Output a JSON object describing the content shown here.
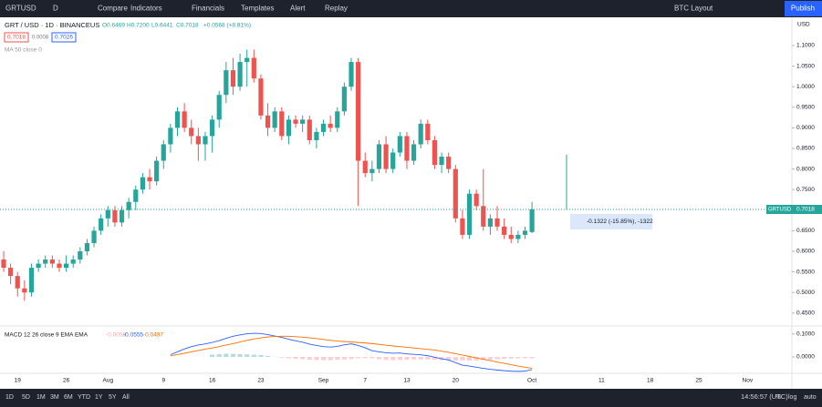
{
  "toolbar": {
    "symbol": "GRTUSD",
    "interval": "D",
    "items": [
      "Compare",
      "Indicators",
      "Financials",
      "Templates",
      "Alert",
      "Replay"
    ],
    "layout": "BTC Layout",
    "publish": "Publish"
  },
  "legend": {
    "title": "GRT / USD · 1D · BINANCEUS",
    "ohlc": [
      "O0.6469",
      "H0.7200",
      "L0.6441",
      "C0.7018",
      "+0.0568 (+8.81%)"
    ],
    "quotes": [
      "0.7018",
      "0.0008",
      "0.7026"
    ],
    "ma": "MA 50 close 0"
  },
  "chart_data": {
    "type": "candlestick",
    "currency": "USD",
    "last_label": "GRTUSD",
    "measure": "-0.1322 (-15.85%), -1322",
    "up_color": "#26a69a",
    "down_color": "#ef5350",
    "categories": [
      null,
      null,
      "19",
      null,
      null,
      null,
      null,
      null,
      null,
      "26",
      null,
      null,
      null,
      null,
      null,
      "Aug",
      null,
      null,
      null,
      null,
      null,
      null,
      null,
      "9",
      null,
      null,
      null,
      null,
      null,
      null,
      "16",
      null,
      null,
      null,
      null,
      null,
      null,
      "23",
      null,
      null,
      null,
      null,
      null,
      null,
      null,
      null,
      "Sep",
      null,
      null,
      null,
      null,
      null,
      "7",
      null,
      null,
      null,
      null,
      null,
      "13",
      null,
      null,
      null,
      null,
      null,
      null,
      "20",
      null,
      null,
      null,
      null,
      null,
      null,
      null,
      null,
      null,
      null,
      "Oct",
      null,
      null,
      null,
      null,
      null,
      null,
      null,
      null,
      null,
      "11",
      null,
      null,
      null,
      null,
      null,
      null,
      "18",
      null,
      null,
      null,
      null,
      null,
      null,
      "25",
      null,
      null,
      null,
      null,
      null,
      null,
      "Nov"
    ],
    "open": [
      0.58,
      0.56,
      0.54,
      0.51,
      0.5,
      0.56,
      0.57,
      0.58,
      0.57,
      0.56,
      0.57,
      0.58,
      0.6,
      0.62,
      0.65,
      0.68,
      0.7,
      0.67,
      0.7,
      0.72,
      0.75,
      0.78,
      0.77,
      0.82,
      0.86,
      0.9,
      0.94,
      0.9,
      0.88,
      0.86,
      0.88,
      0.92,
      0.98,
      1.04,
      1.0,
      1.06,
      1.07,
      1.02,
      0.93,
      0.9,
      0.94,
      0.88,
      0.92,
      0.91,
      0.92,
      0.87,
      0.89,
      0.91,
      0.9,
      0.94,
      1.0,
      1.06,
      0.82,
      0.79,
      0.8,
      0.86,
      0.8,
      0.84,
      0.88,
      0.82,
      0.86,
      0.91,
      0.87,
      0.81,
      0.83,
      0.8,
      0.68,
      0.64,
      0.74,
      0.71,
      0.66,
      0.68,
      0.66,
      0.64,
      0.63,
      0.64,
      0.6469,
      null,
      null,
      null,
      null,
      null,
      null,
      null,
      null,
      null,
      null,
      null,
      null,
      null,
      null,
      null,
      null,
      null,
      null,
      null,
      null,
      null,
      null,
      null,
      null,
      null,
      null,
      null,
      null,
      null,
      null,
      null
    ],
    "high": [
      0.6,
      0.57,
      0.55,
      0.53,
      0.57,
      0.58,
      0.59,
      0.59,
      0.58,
      0.59,
      0.59,
      0.61,
      0.63,
      0.66,
      0.69,
      0.71,
      0.71,
      0.71,
      0.73,
      0.76,
      0.79,
      0.8,
      0.83,
      0.87,
      0.91,
      0.95,
      0.96,
      0.92,
      0.9,
      0.89,
      0.93,
      0.99,
      1.06,
      1.07,
      1.08,
      1.09,
      1.09,
      1.03,
      0.96,
      0.95,
      0.95,
      0.93,
      0.93,
      0.93,
      0.93,
      0.9,
      0.92,
      0.93,
      0.95,
      1.01,
      1.07,
      1.07,
      0.84,
      0.82,
      0.87,
      0.88,
      0.85,
      0.89,
      0.89,
      0.87,
      0.92,
      0.92,
      0.88,
      0.84,
      0.84,
      0.81,
      0.7,
      0.75,
      0.75,
      0.8,
      0.69,
      0.71,
      0.68,
      0.66,
      0.65,
      0.66,
      0.72,
      null,
      null,
      null,
      null,
      null,
      null,
      null,
      null,
      null,
      null,
      null,
      null,
      null,
      null,
      null,
      null,
      null,
      null,
      null,
      null,
      null,
      null,
      null,
      null,
      null,
      null,
      null,
      null,
      null,
      null,
      null
    ],
    "low": [
      0.55,
      0.52,
      0.49,
      0.48,
      0.49,
      0.55,
      0.56,
      0.56,
      0.55,
      0.55,
      0.56,
      0.57,
      0.59,
      0.61,
      0.64,
      0.66,
      0.66,
      0.66,
      0.68,
      0.7,
      0.74,
      0.75,
      0.76,
      0.8,
      0.84,
      0.88,
      0.89,
      0.86,
      0.82,
      0.82,
      0.84,
      0.9,
      0.96,
      0.98,
      0.99,
      1.0,
      1.01,
      0.92,
      0.88,
      0.89,
      0.87,
      0.86,
      0.9,
      0.89,
      0.86,
      0.85,
      0.88,
      0.89,
      0.89,
      0.93,
      0.99,
      0.71,
      0.78,
      0.77,
      0.79,
      0.79,
      0.79,
      0.83,
      0.8,
      0.81,
      0.85,
      0.86,
      0.8,
      0.79,
      0.79,
      0.67,
      0.63,
      0.63,
      0.7,
      0.65,
      0.64,
      0.65,
      0.63,
      0.62,
      0.62,
      0.63,
      0.6441,
      null,
      null,
      null,
      null,
      null,
      null,
      null,
      null,
      null,
      null,
      null,
      null,
      null,
      null,
      null,
      null,
      null,
      null,
      null,
      null,
      null,
      null,
      null,
      null,
      null,
      null,
      null,
      null,
      null,
      null,
      null
    ],
    "close": [
      0.56,
      0.54,
      0.51,
      0.5,
      0.56,
      0.57,
      0.58,
      0.57,
      0.56,
      0.57,
      0.58,
      0.6,
      0.62,
      0.65,
      0.68,
      0.7,
      0.67,
      0.7,
      0.72,
      0.75,
      0.78,
      0.77,
      0.82,
      0.86,
      0.9,
      0.94,
      0.9,
      0.88,
      0.86,
      0.88,
      0.92,
      0.98,
      1.04,
      1.0,
      1.06,
      1.07,
      1.02,
      0.93,
      0.9,
      0.94,
      0.88,
      0.92,
      0.91,
      0.92,
      0.87,
      0.89,
      0.91,
      0.9,
      0.94,
      1.0,
      1.06,
      0.82,
      0.79,
      0.8,
      0.86,
      0.8,
      0.84,
      0.88,
      0.82,
      0.86,
      0.91,
      0.87,
      0.81,
      0.83,
      0.8,
      0.68,
      0.64,
      0.74,
      0.71,
      0.66,
      0.68,
      0.66,
      0.64,
      0.63,
      0.64,
      0.65,
      0.7018,
      null,
      null,
      null,
      null,
      null,
      null,
      null,
      null,
      null,
      null,
      null,
      null,
      null,
      null,
      null,
      null,
      null,
      null,
      null,
      null,
      null,
      null,
      null,
      null,
      null,
      null,
      null,
      null,
      null,
      null,
      null
    ],
    "ylim": [
      0.4186,
      1.1686
    ],
    "yticks": [
      {
        "value": 1.1,
        "label": "1.1000"
      },
      {
        "value": 1.05,
        "label": "1.0500"
      },
      {
        "value": 1.0,
        "label": "1.0000"
      },
      {
        "value": 0.95,
        "label": "0.9500"
      },
      {
        "value": 0.9,
        "label": "0.9000"
      },
      {
        "value": 0.85,
        "label": "0.8500"
      },
      {
        "value": 0.8,
        "label": "0.8000"
      },
      {
        "value": 0.75,
        "label": "0.7500"
      },
      {
        "value": 0.65,
        "label": "0.6500"
      },
      {
        "value": 0.6,
        "label": "0.6000"
      },
      {
        "value": 0.55,
        "label": "0.5500"
      },
      {
        "value": 0.5,
        "label": "0.5000"
      },
      {
        "value": 0.45,
        "label": "0.4500"
      }
    ],
    "macd": {
      "label": "MACD 12 26 close 9 EMA EMA",
      "macd_color": "#2962ff",
      "signal_color": "#ff6d00",
      "hist_up_color": "#b2dfdb",
      "hist_down_color": "#ffcdd2",
      "ylim": [
        -0.0714,
        0.1349
      ],
      "yticks": [
        {
          "value": 0.1,
          "label": "0.1000"
        },
        {
          "value": 0,
          "label": "0.0000"
        }
      ],
      "histogram": [
        null,
        null,
        null,
        null,
        null,
        null,
        null,
        null,
        null,
        null,
        null,
        null,
        null,
        null,
        null,
        null,
        null,
        null,
        null,
        null,
        null,
        null,
        null,
        null,
        null,
        null,
        null,
        null,
        null,
        null,
        0.01,
        0.012,
        0.014,
        0.013,
        0.012,
        0.011,
        0.01,
        0.008,
        0.004,
        0.001,
        -0.003,
        -0.006,
        -0.008,
        -0.01,
        -0.012,
        -0.013,
        -0.014,
        -0.014,
        -0.012,
        -0.011,
        -0.009,
        -0.005,
        -0.005,
        -0.006,
        -0.01,
        -0.013,
        -0.014,
        -0.013,
        -0.012,
        -0.011,
        -0.011,
        -0.011,
        -0.012,
        -0.014,
        -0.015,
        -0.016,
        -0.015,
        -0.016,
        -0.016,
        -0.014,
        -0.012,
        -0.01,
        -0.008,
        -0.007,
        -0.006,
        -0.006,
        -0.0058,
        null,
        null,
        null,
        null,
        null,
        null,
        null,
        null,
        null,
        null,
        null,
        null,
        null,
        null,
        null,
        null,
        null,
        null,
        null,
        null,
        null,
        null,
        null,
        null,
        null,
        null,
        null,
        null,
        null,
        null,
        null
      ],
      "macd": [
        null,
        null,
        null,
        null,
        null,
        null,
        null,
        null,
        null,
        null,
        null,
        null,
        null,
        null,
        null,
        null,
        null,
        null,
        null,
        null,
        null,
        null,
        null,
        null,
        0.01,
        0.022,
        0.035,
        0.045,
        0.052,
        0.057,
        0.063,
        0.071,
        0.081,
        0.09,
        0.096,
        0.101,
        0.103,
        0.102,
        0.097,
        0.091,
        0.085,
        0.077,
        0.07,
        0.064,
        0.056,
        0.05,
        0.045,
        0.043,
        0.046,
        0.053,
        0.057,
        0.05,
        0.04,
        0.027,
        0.022,
        0.018,
        0.016,
        0.017,
        0.013,
        0.011,
        0.009,
        0.005,
        -0.001,
        -0.008,
        -0.013,
        -0.025,
        -0.036,
        -0.04,
        -0.045,
        -0.05,
        -0.054,
        -0.057,
        -0.06,
        -0.062,
        -0.063,
        -0.062,
        -0.0555,
        null,
        null,
        null,
        null,
        null,
        null,
        null,
        null,
        null,
        null,
        null,
        null,
        null,
        null,
        null,
        null,
        null,
        null,
        null,
        null,
        null,
        null,
        null,
        null,
        null,
        null,
        null,
        null,
        null,
        null,
        null
      ],
      "signal": [
        null,
        null,
        null,
        null,
        null,
        null,
        null,
        null,
        null,
        null,
        null,
        null,
        null,
        null,
        null,
        null,
        null,
        null,
        null,
        null,
        null,
        null,
        null,
        null,
        0.005,
        0.01,
        0.016,
        0.022,
        0.028,
        0.034,
        0.039,
        0.045,
        0.052,
        0.058,
        0.065,
        0.072,
        0.078,
        0.083,
        0.087,
        0.089,
        0.09,
        0.09,
        0.088,
        0.086,
        0.083,
        0.08,
        0.076,
        0.072,
        0.069,
        0.067,
        0.065,
        0.063,
        0.061,
        0.058,
        0.055,
        0.051,
        0.048,
        0.045,
        0.042,
        0.039,
        0.036,
        0.033,
        0.03,
        0.025,
        0.02,
        0.014,
        0.008,
        0.002,
        -0.004,
        -0.01,
        -0.016,
        -0.022,
        -0.028,
        -0.034,
        -0.04,
        -0.045,
        -0.0497,
        null,
        null,
        null,
        null,
        null,
        null,
        null,
        null,
        null,
        null,
        null,
        null,
        null,
        null,
        null,
        null,
        null,
        null,
        null,
        null,
        null,
        null,
        null,
        null,
        null,
        null,
        null,
        null,
        null,
        null,
        null
      ]
    }
  },
  "bottom_bar": {
    "ranges": [
      "1D",
      "5D",
      "1M",
      "3M",
      "6M",
      "YTD",
      "1Y",
      "5Y",
      "All"
    ],
    "clock": "14:56:57 (UTC)",
    "options": [
      "%",
      "log",
      "auto"
    ]
  }
}
